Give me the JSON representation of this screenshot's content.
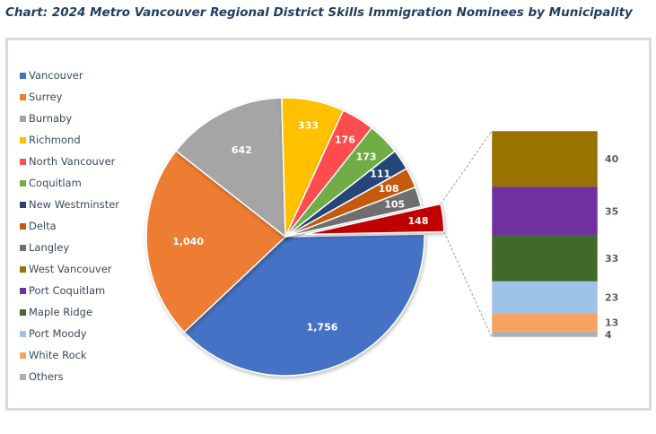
{
  "title": "Chart: 2024 Metro Vancouver Regional District Skills Immigration Nominees by Municipality",
  "chart_data": {
    "type": "pie",
    "variant": "bar-of-pie",
    "main_slices": [
      {
        "name": "Vancouver",
        "value": 1756,
        "label": "1,756",
        "color": "#4472c4",
        "label_color": "#ffffff"
      },
      {
        "name": "Surrey",
        "value": 1040,
        "label": "1,040",
        "color": "#ed7d31",
        "label_color": "#ffffff"
      },
      {
        "name": "Burnaby",
        "value": 642,
        "label": "642",
        "color": "#a5a5a5",
        "label_color": "#ffffff"
      },
      {
        "name": "Richmond",
        "value": 333,
        "label": "333",
        "color": "#ffc000",
        "label_color": "#ffffff"
      },
      {
        "name": "North Vancouver",
        "value": 176,
        "label": "176",
        "color": "#ff4d4d",
        "label_color": "#ffffff"
      },
      {
        "name": "Coquitlam",
        "value": 173,
        "label": "173",
        "color": "#70ad47",
        "label_color": "#ffffff"
      },
      {
        "name": "New Westminster",
        "value": 111,
        "label": "111",
        "color": "#264478",
        "label_color": "#ffffff"
      },
      {
        "name": "Delta",
        "value": 108,
        "label": "108",
        "color": "#c55a11",
        "label_color": "#ffffff"
      },
      {
        "name": "Langley",
        "value": 105,
        "label": "105",
        "color": "#6e6e6e",
        "label_color": "#ffffff"
      },
      {
        "name": "Others",
        "value": 148,
        "label": "148",
        "color": "#c00000",
        "label_color": "#ffffff"
      }
    ],
    "bar_segments": [
      {
        "name": "West Vancouver",
        "value": 40,
        "label": "40",
        "color": "#997300"
      },
      {
        "name": "Port Coquitlam",
        "value": 35,
        "label": "35",
        "color": "#7030a0"
      },
      {
        "name": "Maple Ridge",
        "value": 33,
        "label": "33",
        "color": "#43682b"
      },
      {
        "name": "Port Moody",
        "value": 23,
        "label": "23",
        "color": "#9dc3e6"
      },
      {
        "name": "White Rock",
        "value": 13,
        "label": "13",
        "color": "#f4a460"
      },
      {
        "name": "Others",
        "value": 4,
        "label": "4",
        "color": "#b0b0b0"
      }
    ],
    "legend": {
      "position": "left",
      "items": [
        {
          "name": "Vancouver",
          "color": "#4472c4"
        },
        {
          "name": "Surrey",
          "color": "#ed7d31"
        },
        {
          "name": "Burnaby",
          "color": "#a5a5a5"
        },
        {
          "name": "Richmond",
          "color": "#ffc000"
        },
        {
          "name": "North Vancouver",
          "color": "#ff4d4d"
        },
        {
          "name": "Coquitlam",
          "color": "#70ad47"
        },
        {
          "name": "New Westminster",
          "color": "#264478"
        },
        {
          "name": "Delta",
          "color": "#c55a11"
        },
        {
          "name": "Langley",
          "color": "#6e6e6e"
        },
        {
          "name": "West Vancouver",
          "color": "#997300"
        },
        {
          "name": "Port Coquitlam",
          "color": "#7030a0"
        },
        {
          "name": "Maple Ridge",
          "color": "#43682b"
        },
        {
          "name": "Port Moody",
          "color": "#9dc3e6"
        },
        {
          "name": "White Rock",
          "color": "#f4a460"
        },
        {
          "name": "Others",
          "color": "#b0b0b0"
        }
      ]
    }
  }
}
